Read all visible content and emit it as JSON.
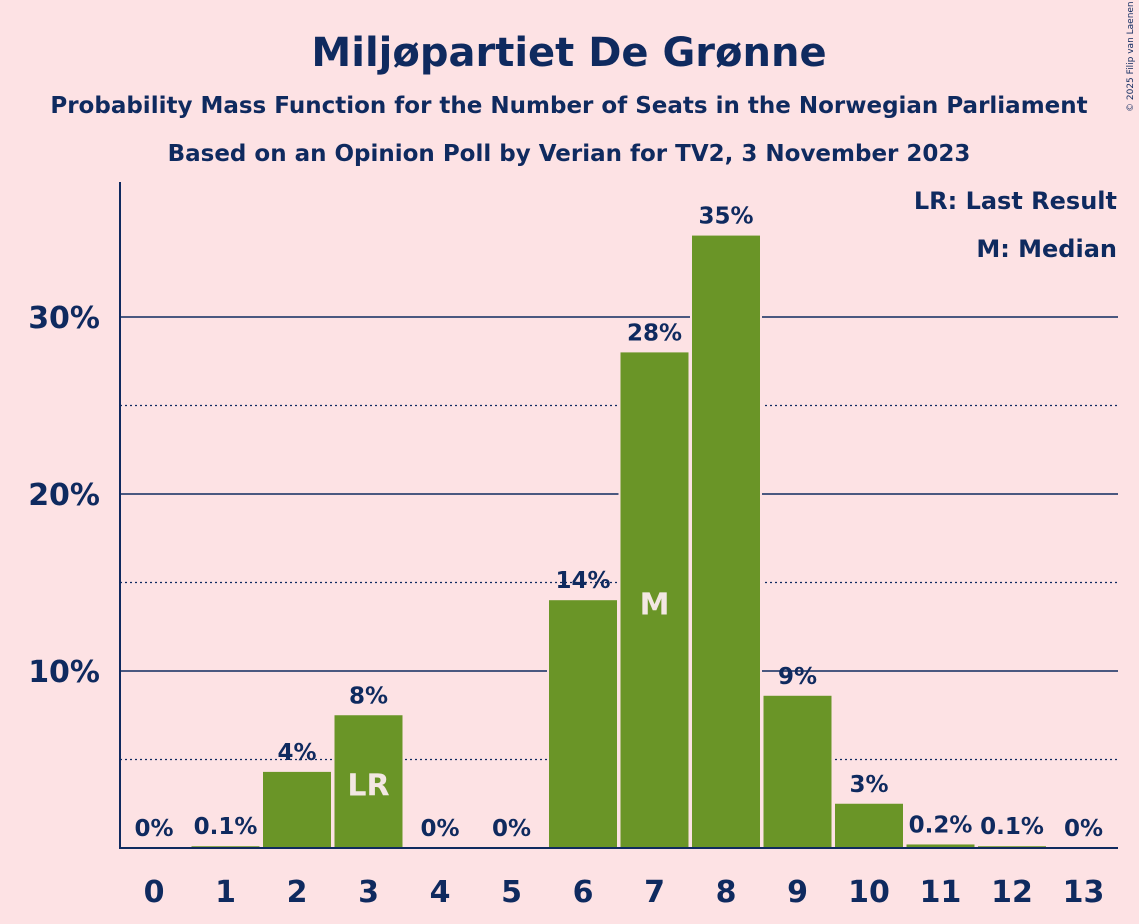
{
  "colors": {
    "background": "#FDE2E4",
    "bar": "#6A9527",
    "text": "#0F2A5F",
    "in_bar_text": "#F3E7E3"
  },
  "chart_data": {
    "type": "bar",
    "title": "Miljøpartiet De Grønne",
    "subtitle": "Probability Mass Function for the Number of Seats in the Norwegian Parliament",
    "subtitle2": "Based on an Opinion Poll by Verian for TV2, 3 November 2023",
    "xlabel": "",
    "ylabel": "",
    "categories": [
      "0",
      "1",
      "2",
      "3",
      "4",
      "5",
      "6",
      "7",
      "8",
      "9",
      "10",
      "11",
      "12",
      "13"
    ],
    "values": [
      0,
      0.1,
      4.3,
      7.5,
      0,
      0,
      14.0,
      28.0,
      34.6,
      8.6,
      2.5,
      0.2,
      0.1,
      0
    ],
    "data_labels": [
      "0%",
      "0.1%",
      "4%",
      "8%",
      "0%",
      "0%",
      "14%",
      "28%",
      "35%",
      "9%",
      "3%",
      "0.2%",
      "0.1%",
      "0%"
    ],
    "ylim": [
      0,
      37.5
    ],
    "yticks": [
      10,
      20,
      30
    ],
    "ytick_labels": [
      "10%",
      "20%",
      "30%"
    ],
    "minor_gridlines": [
      5,
      15,
      25
    ],
    "grid": true,
    "markers": [
      {
        "index": 3,
        "label": "LR"
      },
      {
        "index": 7,
        "label": "M"
      }
    ],
    "legend": {
      "position": "top-right",
      "entries": [
        "LR: Last Result",
        "M: Median"
      ]
    },
    "copyright": "© 2025 Filip van Laenen"
  }
}
